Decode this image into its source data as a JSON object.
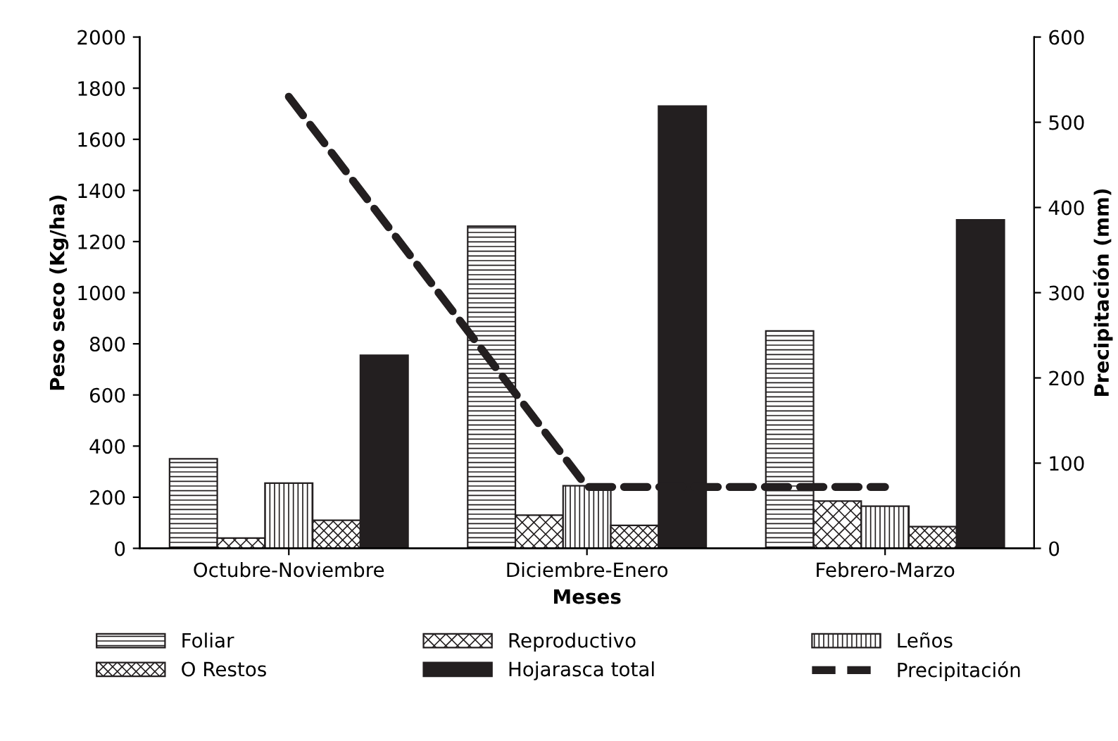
{
  "chart_data": {
    "type": "bar",
    "xlabel": "Meses",
    "ylabel": "Peso seco (Kg/ha)",
    "y2label": "Precipitación (mm)",
    "categories": [
      "Octubre-Noviembre",
      "Diciembre-Enero",
      "Febrero-Marzo"
    ],
    "series": [
      {
        "name": "Foliar",
        "color": "#231f20",
        "values": [
          350,
          1260,
          850
        ]
      },
      {
        "name": "Reproductivo",
        "color": "#231f20",
        "values": [
          40,
          130,
          185
        ]
      },
      {
        "name": "Leños",
        "color": "#231f20",
        "values": [
          255,
          245,
          165
        ]
      },
      {
        "name": "O Restos",
        "color": "#231f20",
        "values": [
          110,
          90,
          85
        ]
      },
      {
        "name": "Hojarasca total",
        "color": "#231f20",
        "values": [
          755,
          1730,
          1285
        ]
      },
      {
        "name": "Precipitación",
        "type": "line",
        "axis": "y2",
        "color": "#231f20",
        "line_style": "dashed",
        "values": [
          530,
          72,
          72
        ]
      }
    ],
    "ylim": [
      0,
      2000
    ],
    "yticks": [
      0,
      200,
      400,
      600,
      800,
      1000,
      1200,
      1400,
      1600,
      1800,
      2000
    ],
    "y2lim": [
      0,
      600
    ],
    "y2ticks": [
      0,
      100,
      200,
      300,
      400,
      500,
      600
    ],
    "grid": false,
    "legend": "bottom",
    "marker": "none"
  }
}
